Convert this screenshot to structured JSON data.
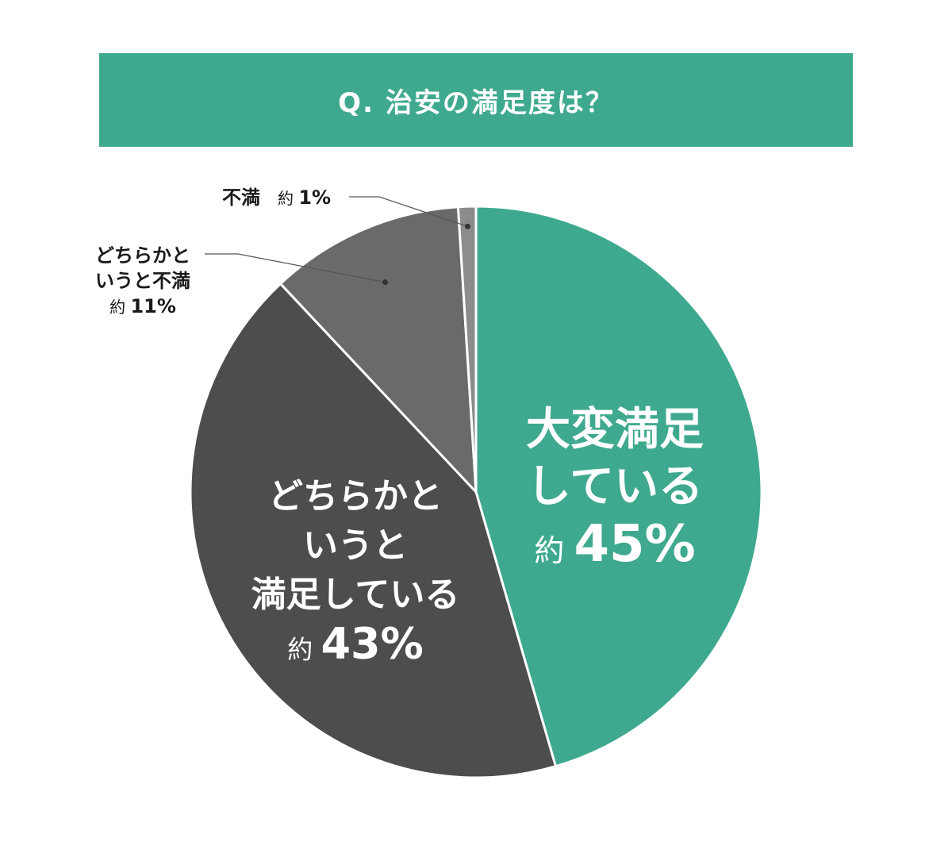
{
  "title": "Q. 治安の満足度は？",
  "colors": {
    "banner": "#3fa98f",
    "slice_1": "#3fa98f",
    "slice_2": "#4d4d4d",
    "slice_3": "#6a6a6a",
    "slice_4": "#8c8c8c",
    "outside_text": "#1a1a1a",
    "inside_text": "#ffffff"
  },
  "chart_data": {
    "type": "pie",
    "title": "Q. 治安の満足度は？",
    "slices": [
      {
        "label_lines": [
          "大変満足",
          "している"
        ],
        "value_prefix": "約",
        "value_text": "45%",
        "value": 45.5
      },
      {
        "label_lines": [
          "どちらかと",
          "いうと",
          "満足している"
        ],
        "value_prefix": "約",
        "value_text": "43%",
        "value": 42.5
      },
      {
        "label_lines": [
          "どちらかと",
          "いうと不満"
        ],
        "value_prefix": "約",
        "value_text": "11%",
        "value": 11
      },
      {
        "label_lines": [
          "不満"
        ],
        "value_prefix": "約",
        "value_text": "1%",
        "value": 1
      }
    ]
  }
}
